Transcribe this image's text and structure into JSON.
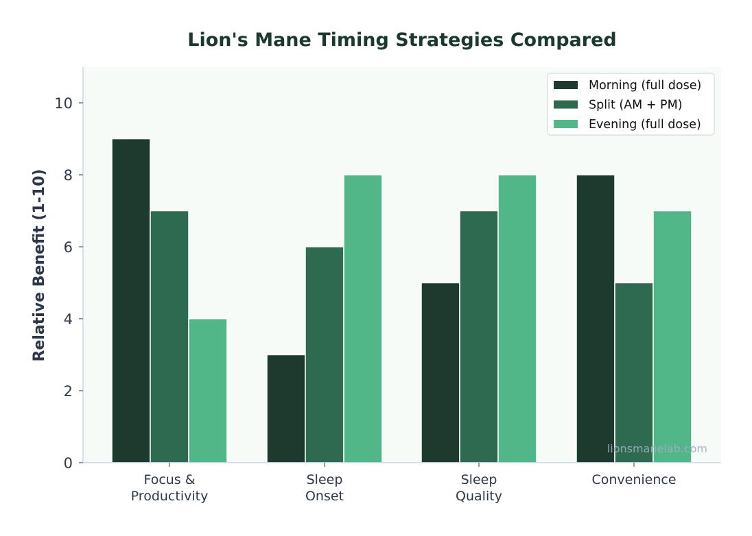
{
  "chart_data": {
    "type": "bar",
    "title": "Lion's Mane Timing Strategies Compared",
    "xlabel": "",
    "ylabel": "Relative Benefit (1-10)",
    "ylim": [
      0,
      11
    ],
    "yticks": [
      "0",
      "2",
      "4",
      "6",
      "8",
      "10"
    ],
    "categories": [
      "Focus &\nProductivity",
      "Sleep\nOnset",
      "Sleep\nQuality",
      "Convenience"
    ],
    "series": [
      {
        "name": "Morning (full dose)",
        "color": "#1c3a2e",
        "values": [
          9,
          3,
          5,
          8
        ]
      },
      {
        "name": "Split (AM + PM)",
        "color": "#2d6a4f",
        "values": [
          7,
          6,
          7,
          5
        ]
      },
      {
        "name": "Evening (full dose)",
        "color": "#52b788",
        "values": [
          4,
          8,
          8,
          7
        ]
      }
    ],
    "legend_position": "top-right",
    "grid": false,
    "watermark": "lionsmanelab.com",
    "colors": {
      "title": "#1b3a2d",
      "plot_background": "#f7fbf8",
      "axis": "#cbd5e0",
      "text": "#2d3748"
    }
  }
}
